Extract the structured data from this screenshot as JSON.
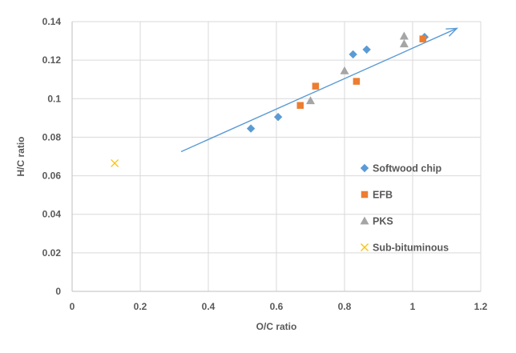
{
  "chart_data": {
    "type": "scatter",
    "title": "",
    "xlabel": "O/C ratio",
    "ylabel": "H/C ratio",
    "xlim": [
      0,
      1.2
    ],
    "ylim": [
      0,
      0.14
    ],
    "x_ticks": [
      0,
      0.2,
      0.4,
      0.6,
      0.8,
      1,
      1.2
    ],
    "x_tick_labels": [
      "0",
      "0.2",
      "0.4",
      "0.6",
      "0.8",
      "1",
      "1.2"
    ],
    "y_ticks": [
      0,
      0.02,
      0.04,
      0.06,
      0.08,
      0.1,
      0.12,
      0.14
    ],
    "y_tick_labels": [
      "0",
      "0.02",
      "0.04",
      "0.06",
      "0.08",
      "0.1",
      "0.12",
      "0.14"
    ],
    "grid": true,
    "legend_position": "right",
    "series": [
      {
        "name": "Softwood chip",
        "marker": "diamond",
        "color": "#5B9BD5",
        "points": [
          {
            "x": 0.525,
            "y": 0.0845
          },
          {
            "x": 0.605,
            "y": 0.0905
          },
          {
            "x": 0.825,
            "y": 0.123
          },
          {
            "x": 0.865,
            "y": 0.1255
          },
          {
            "x": 1.035,
            "y": 0.132
          }
        ]
      },
      {
        "name": "EFB",
        "marker": "square",
        "color": "#ED7D31",
        "points": [
          {
            "x": 0.67,
            "y": 0.0965
          },
          {
            "x": 0.715,
            "y": 0.1065
          },
          {
            "x": 0.835,
            "y": 0.109
          },
          {
            "x": 1.03,
            "y": 0.131
          }
        ]
      },
      {
        "name": "PKS",
        "marker": "triangle",
        "color": "#A5A5A5",
        "points": [
          {
            "x": 0.7,
            "y": 0.099
          },
          {
            "x": 0.8,
            "y": 0.1145
          },
          {
            "x": 0.975,
            "y": 0.1325
          },
          {
            "x": 0.975,
            "y": 0.1285
          }
        ]
      },
      {
        "name": "Sub-bituminous",
        "marker": "x",
        "color": "#FFC000",
        "points": [
          {
            "x": 0.125,
            "y": 0.0665
          }
        ]
      }
    ],
    "trend_arrow": {
      "color": "#5B9BD5",
      "from": {
        "x": 0.32,
        "y": 0.0725
      },
      "to": {
        "x": 1.13,
        "y": 0.1365
      }
    }
  }
}
